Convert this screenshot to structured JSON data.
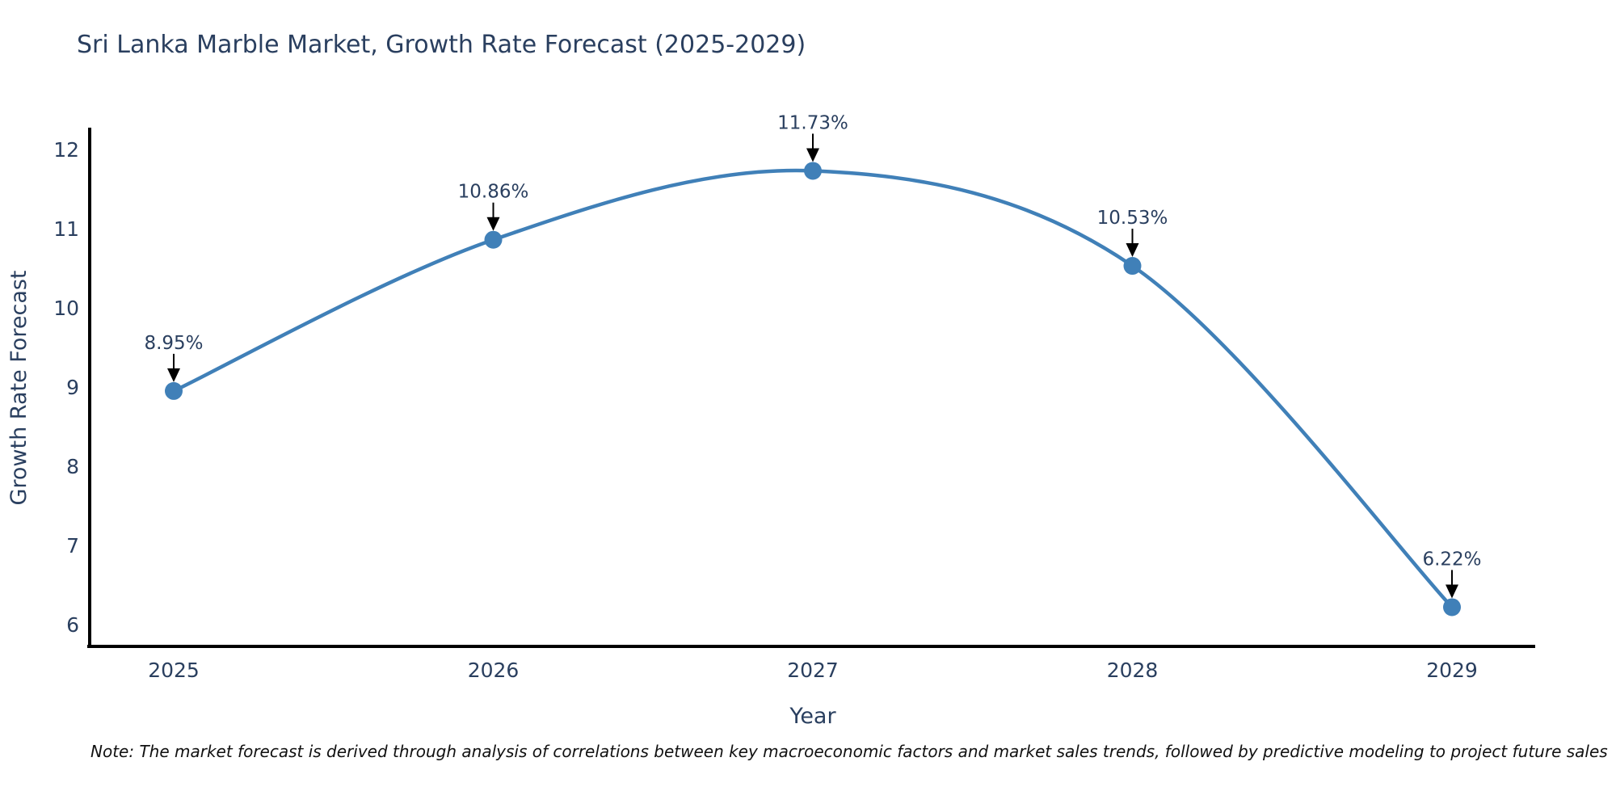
{
  "title": "Sri Lanka Marble Market, Growth Rate Forecast (2025-2029)",
  "note": "Note: The market forecast is derived through analysis of correlations between key macroeconomic factors and market sales trends, followed by predictive modeling to project future sales",
  "chart_data": {
    "type": "line",
    "title": "Sri Lanka Marble Market, Growth Rate Forecast (2025-2029)",
    "x": [
      "2025",
      "2026",
      "2027",
      "2028",
      "2029"
    ],
    "values": [
      8.95,
      10.86,
      11.73,
      10.53,
      6.22
    ],
    "point_labels": [
      "8.95%",
      "10.86%",
      "11.73%",
      "10.53%",
      "6.22%"
    ],
    "xlabel": "Year",
    "ylabel": "Growth Rate Forecast",
    "ylim": [
      6,
      12
    ],
    "yticks": [
      6,
      7,
      8,
      9,
      10,
      11,
      12
    ],
    "line_shape": "spline",
    "markers": true,
    "grid": false,
    "legend": "none",
    "annotations": "arrow-down-to-point"
  },
  "colors": {
    "line": "#4080b8",
    "marker": "#4080b8",
    "arrow": "#000000",
    "axis": "#000000",
    "text": "#2a3f5f",
    "note": "#111111",
    "background": "#ffffff"
  }
}
